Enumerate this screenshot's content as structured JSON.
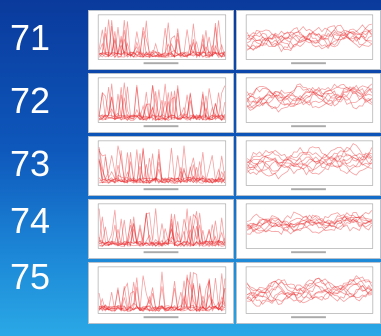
{
  "rows": [
    {
      "label": "71"
    },
    {
      "label": "72"
    },
    {
      "label": "73"
    },
    {
      "label": "74"
    },
    {
      "label": "75"
    }
  ],
  "colors": {
    "background_top": "#0a3a9c",
    "background_bottom": "#2aa8e6",
    "trace": "#e8282b",
    "label": "#ffffff"
  },
  "plot_types": [
    "spike-traces",
    "wavy-traces"
  ]
}
